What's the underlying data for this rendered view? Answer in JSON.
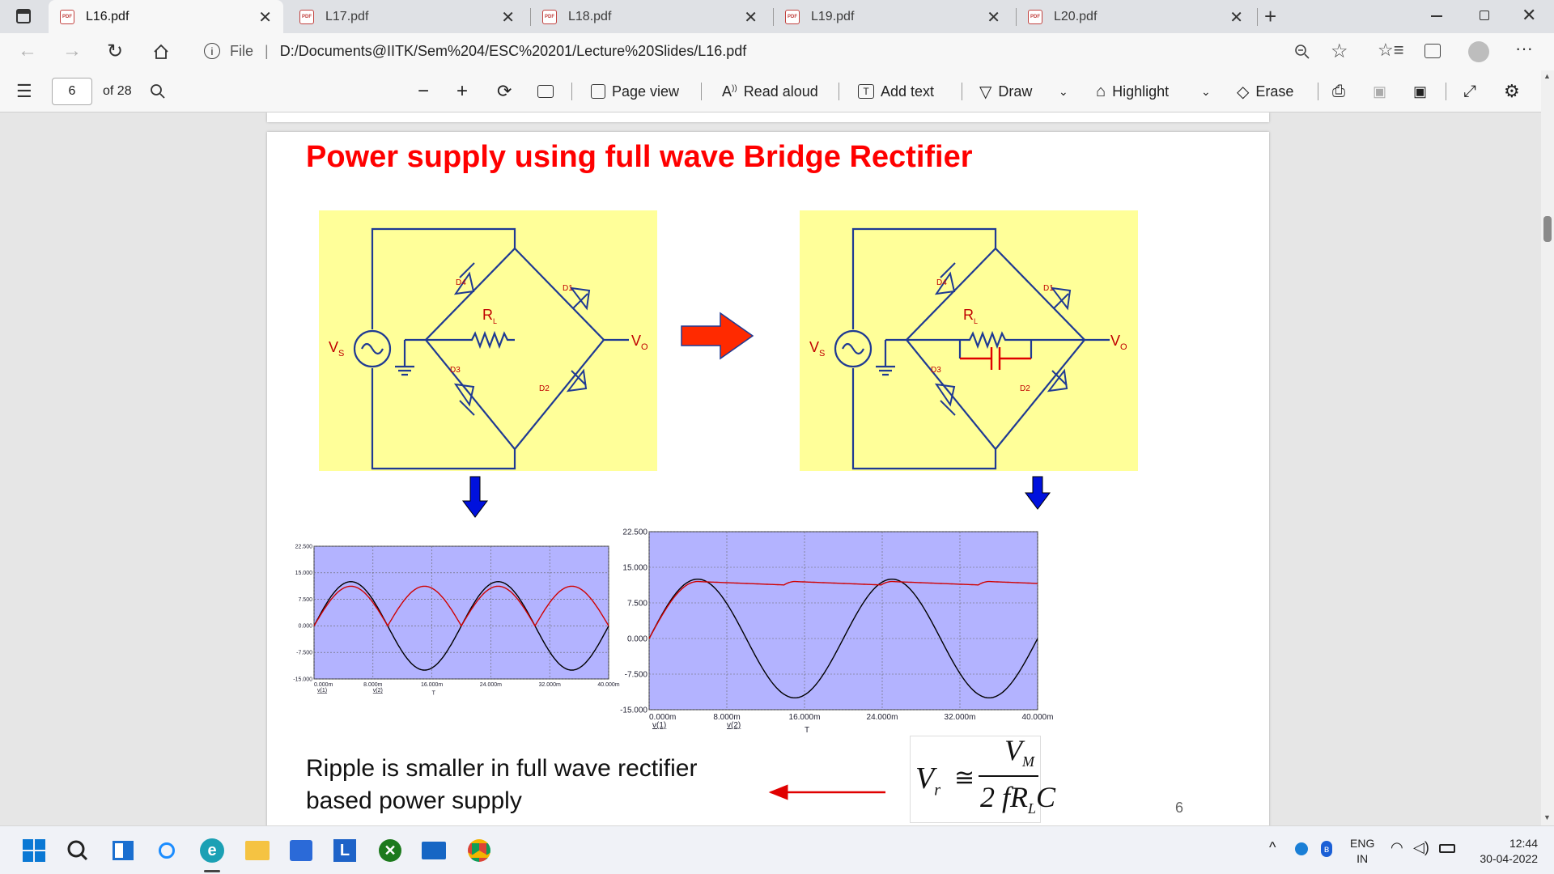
{
  "tabs": [
    {
      "title": "L16.pdf",
      "active": true
    },
    {
      "title": "L17.pdf"
    },
    {
      "title": "L18.pdf"
    },
    {
      "title": "L19.pdf"
    },
    {
      "title": "L20.pdf"
    }
  ],
  "address": {
    "prefix": "File",
    "url": "D:/Documents@IITK/Sem%204/ESC%20201/Lecture%20Slides/L16.pdf"
  },
  "pdf_toolbar": {
    "page_number": "6",
    "page_count": "of 28",
    "page_view": "Page view",
    "read_aloud": "Read aloud",
    "add_text": "Add text",
    "draw": "Draw",
    "highlight": "Highlight",
    "erase": "Erase"
  },
  "slide": {
    "title": "Power supply using full wave Bridge Rectifier",
    "ripple_line1": "Ripple is smaller in full wave rectifier",
    "ripple_line2": "based power supply",
    "page_num": "6",
    "formula": {
      "lhs": "V",
      "lhs_sub": "r",
      "approx": "≅",
      "numerator": "V",
      "numerator_sub": "M",
      "denominator": "2 fR",
      "denominator_sub": "L",
      "denominator_end": "C"
    },
    "circuit_labels": {
      "d1": "D1",
      "d2": "D2",
      "d3": "D3",
      "d4": "D4",
      "rl": "R",
      "rl_sub": "L",
      "vs": "V",
      "vs_sub": "S",
      "vo": "V",
      "vo_sub": "O"
    }
  },
  "colors": {
    "title": "#ff0000",
    "circuit_bg": "#ffff99",
    "wire": "#1f3a93",
    "plot_bg": "#b3b3ff",
    "v1": "#000000",
    "v2": "#d00000"
  },
  "chart_data": [
    {
      "type": "line",
      "title": "",
      "xlabel": "T",
      "ylabel": "",
      "x_ticks": [
        "0.000m",
        "8.000m",
        "16.000m",
        "24.000m",
        "32.000m",
        "40.000m"
      ],
      "y_ticks": [
        "22.500",
        "15.000",
        "7.500",
        "0.000",
        "-7.500",
        "-15.000"
      ],
      "xlim": [
        0,
        40
      ],
      "ylim": [
        -15,
        22.5
      ],
      "series": [
        {
          "name": "v(1)",
          "kind": "sine",
          "amplitude": 12.5,
          "period_ms": 20
        },
        {
          "name": "v(2)",
          "kind": "fullwave",
          "amplitude": 11.2,
          "period_ms": 20
        }
      ]
    },
    {
      "type": "line",
      "title": "",
      "xlabel": "T",
      "ylabel": "",
      "x_ticks": [
        "0.000m",
        "8.000m",
        "16.000m",
        "24.000m",
        "32.000m",
        "40.000m"
      ],
      "y_ticks": [
        "22.500",
        "15.000",
        "7.500",
        "0.000",
        "-7.500",
        "-15.000"
      ],
      "xlim": [
        0,
        40
      ],
      "ylim": [
        -15,
        22.5
      ],
      "series": [
        {
          "name": "v(1)",
          "kind": "sine",
          "amplitude": 12.5,
          "period_ms": 20
        },
        {
          "name": "v(2)",
          "kind": "filtered",
          "amplitude": 12.0,
          "period_ms": 20,
          "ripple": 0.9
        }
      ]
    }
  ],
  "taskbar": {
    "lang": "ENG",
    "region": "IN",
    "time": "12:44",
    "date": "30-04-2022"
  }
}
